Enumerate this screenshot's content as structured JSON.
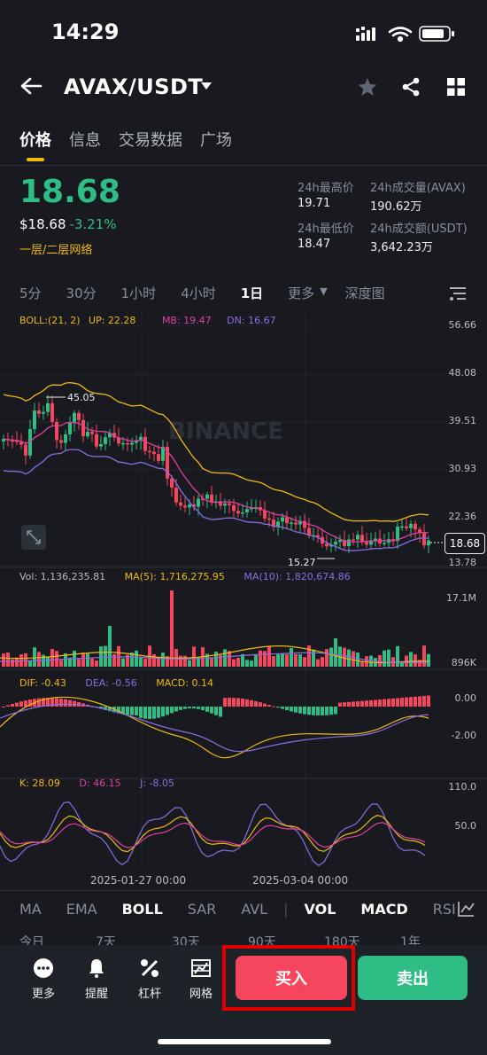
{
  "status_bar": {
    "time": "14:29"
  },
  "header": {
    "pair": "AVAX/USDT"
  },
  "tabs": [
    {
      "label": "价格",
      "active": true
    },
    {
      "label": "信息",
      "active": false
    },
    {
      "label": "交易数据",
      "active": false
    },
    {
      "label": "广场",
      "active": false
    }
  ],
  "price": {
    "last": "18.68",
    "usd": "$18.68",
    "change": "-3.21%",
    "grid_link": "一层/二层网络"
  },
  "stats": {
    "high_label": "24h最高价",
    "high": "19.71",
    "vol_label": "24h成交量(AVAX)",
    "vol": "190.62万",
    "low_label": "24h最低价",
    "low": "18.47",
    "amt_label": "24h成交额(USDT)",
    "amt": "3,642.23万"
  },
  "intervals": [
    "5分",
    "30分",
    "1小时",
    "4小时",
    "1日",
    "更多",
    "深度图"
  ],
  "selected_interval": "1日",
  "boll": {
    "label": "BOLL:(21, 2)",
    "up": "UP: 22.28",
    "mb": "MB: 19.47",
    "dn": "DN: 16.67"
  },
  "main_axis": [
    "56.66",
    "48.08",
    "39.51",
    "30.93",
    "22.36",
    "13.78"
  ],
  "current_price_tag": "18.68",
  "markers": {
    "high": "45.05",
    "low": "15.27"
  },
  "watermark": "BINANCE",
  "vol": {
    "label": "Vol: 1,136,235.81",
    "ma5": "MA(5): 1,716,275.95",
    "ma10": "MA(10): 1,820,674.86",
    "axis_top": "17.1M",
    "axis_bottom": "896K"
  },
  "macd": {
    "dif": "DIF: -0.43",
    "dea": "DEA: -0.56",
    "macd": "MACD: 0.14",
    "axis_top": "0.00",
    "axis_bottom": "-2.00"
  },
  "kdj": {
    "k": "K: 28.09",
    "d": "D: 46.15",
    "j": "J: -8.05",
    "axis_top": "110.0",
    "axis_mid": "50.0"
  },
  "dates": [
    "2025-01-27 00:00",
    "2025-03-04 00:00"
  ],
  "indicator_tabs": [
    "MA",
    "EMA",
    "BOLL",
    "SAR",
    "AVL",
    "VOL",
    "MACD",
    "RSI"
  ],
  "period_row": [
    "今日",
    "7天",
    "30天",
    "90天",
    "180天",
    "1年"
  ],
  "bottom": {
    "more": "更多",
    "alert": "提醒",
    "leverage": "杠杆",
    "grid": "网格",
    "buy": "买入",
    "sell": "卖出"
  },
  "colors": {
    "bg": "#181a20",
    "up": "#2ebd85",
    "down": "#f6465d",
    "accent": "#f0b90b",
    "boll_up": "#f0b90b",
    "boll_mb": "#e040a0",
    "boll_dn": "#8a6ee0"
  }
}
